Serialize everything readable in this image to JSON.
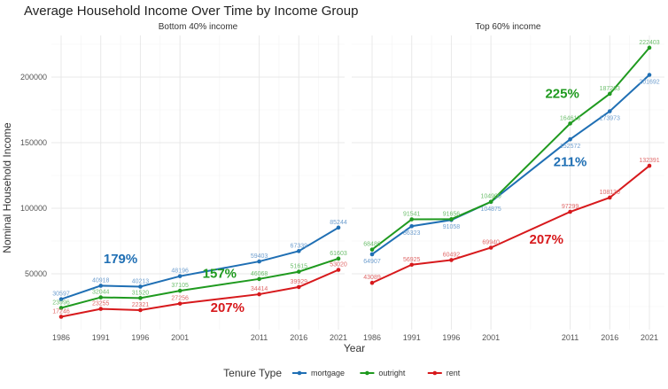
{
  "chart_data": {
    "type": "line",
    "title": "Average Household Income Over Time by Income Group",
    "xlabel": "Year",
    "ylabel": "Nominal Household Income",
    "x": [
      1986,
      1991,
      1996,
      2001,
      2011,
      2016,
      2021
    ],
    "yticks": [
      50000,
      100000,
      150000,
      200000
    ],
    "ytick_labels": [
      "50000",
      "100000",
      "150000",
      "200000"
    ],
    "grid": true,
    "legend": {
      "title": "Tenure Type",
      "placement": "bottom",
      "entries": [
        "mortgage",
        "outright",
        "rent"
      ]
    },
    "colors": {
      "mortgage": "#1f6fb4",
      "outright": "#1f9a1f",
      "rent": "#d7191c"
    },
    "label_colors": {
      "mortgage": "#6f9fcf",
      "outright": "#6fbf6f",
      "rent": "#e06a6a"
    },
    "panels": [
      {
        "title": "Bottom 40% income",
        "series": [
          {
            "name": "mortgage",
            "values": [
              30597,
              40918,
              40213,
              48196,
              59403,
              67339,
              85244
            ]
          },
          {
            "name": "outright",
            "values": [
              23996,
              32044,
              31520,
              37105,
              46068,
              51615,
              61603
            ]
          },
          {
            "name": "rent",
            "values": [
              17246,
              23255,
              22321,
              27256,
              34414,
              39929,
              53020
            ]
          }
        ],
        "annotations": [
          {
            "text": "179%",
            "series": "mortgage",
            "x": 1993.5,
            "y": 58000
          },
          {
            "text": "157%",
            "series": "outright",
            "x": 2006,
            "y": 47000
          },
          {
            "text": "207%",
            "series": "rent",
            "x": 2007,
            "y": 21000
          }
        ]
      },
      {
        "title": "Top 60% income",
        "series": [
          {
            "name": "mortgage",
            "values": [
              64907,
              86323,
              91058,
              104875,
              152572,
              173973,
              201692
            ]
          },
          {
            "name": "outright",
            "values": [
              68486,
              91541,
              91656,
              104900,
              164613,
              187263,
              222403
            ]
          },
          {
            "name": "rent",
            "values": [
              43089,
              56925,
              60492,
              69940,
              97299,
              108130,
              132391
            ]
          }
        ],
        "annotations": [
          {
            "text": "225%",
            "series": "outright",
            "x": 2010,
            "y": 184000
          },
          {
            "text": "211%",
            "series": "mortgage",
            "x": 2011,
            "y": 132000
          },
          {
            "text": "207%",
            "series": "rent",
            "x": 2008,
            "y": 73000
          }
        ]
      }
    ]
  }
}
